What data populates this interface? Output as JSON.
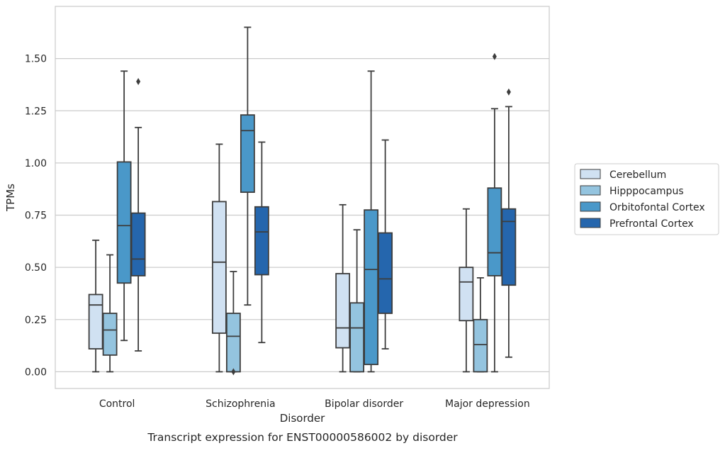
{
  "caption": "Transcript expression for ENST00000586002 by disorder",
  "chart_data": {
    "type": "box",
    "title": "",
    "xlabel": "Disorder",
    "ylabel": "TPMs",
    "ylim": [
      -0.08,
      1.75
    ],
    "yticks": [
      0.0,
      0.25,
      0.5,
      0.75,
      1.0,
      1.25,
      1.5
    ],
    "ytick_labels": [
      "0.00",
      "0.25",
      "0.50",
      "0.75",
      "1.00",
      "1.25",
      "1.50"
    ],
    "grid": "horizontal",
    "legend_position": "right",
    "categories": [
      "Control",
      "Schizophrenia",
      "Bipolar disorder",
      "Major depression"
    ],
    "series": [
      {
        "name": "Cerebellum",
        "color": "#d0e1f2",
        "boxes": [
          {
            "whislo": 0.0,
            "q1": 0.11,
            "med": 0.32,
            "q3": 0.37,
            "whishi": 0.63,
            "fliers": []
          },
          {
            "whislo": 0.0,
            "q1": 0.185,
            "med": 0.525,
            "q3": 0.815,
            "whishi": 1.09,
            "fliers": []
          },
          {
            "whislo": 0.0,
            "q1": 0.115,
            "med": 0.21,
            "q3": 0.47,
            "whishi": 0.8,
            "fliers": []
          },
          {
            "whislo": 0.0,
            "q1": 0.245,
            "med": 0.43,
            "q3": 0.5,
            "whishi": 0.78,
            "fliers": []
          }
        ]
      },
      {
        "name": "Hipppocampus",
        "color": "#94c4df",
        "boxes": [
          {
            "whislo": 0.0,
            "q1": 0.08,
            "med": 0.2,
            "q3": 0.28,
            "whishi": 0.56,
            "fliers": []
          },
          {
            "whislo": 0.0,
            "q1": 0.0,
            "med": 0.17,
            "q3": 0.28,
            "whishi": 0.48,
            "fliers": [
              0.0
            ]
          },
          {
            "whislo": 0.0,
            "q1": 0.0,
            "med": 0.21,
            "q3": 0.33,
            "whishi": 0.68,
            "fliers": []
          },
          {
            "whislo": 0.0,
            "q1": 0.0,
            "med": 0.13,
            "q3": 0.25,
            "whishi": 0.45,
            "fliers": []
          }
        ]
      },
      {
        "name": "Orbitofontal Cortex",
        "color": "#4a98c9",
        "boxes": [
          {
            "whislo": 0.15,
            "q1": 0.425,
            "med": 0.7,
            "q3": 1.005,
            "whishi": 1.44,
            "fliers": []
          },
          {
            "whislo": 0.32,
            "q1": 0.86,
            "med": 1.155,
            "q3": 1.23,
            "whishi": 1.65,
            "fliers": []
          },
          {
            "whislo": 0.0,
            "q1": 0.035,
            "med": 0.49,
            "q3": 0.775,
            "whishi": 1.44,
            "fliers": []
          },
          {
            "whislo": 0.0,
            "q1": 0.46,
            "med": 0.57,
            "q3": 0.88,
            "whishi": 1.26,
            "fliers": [
              1.51
            ]
          }
        ]
      },
      {
        "name": "Prefrontal Cortex",
        "color": "#2566ad",
        "boxes": [
          {
            "whislo": 0.1,
            "q1": 0.46,
            "med": 0.54,
            "q3": 0.76,
            "whishi": 1.17,
            "fliers": [
              1.39
            ]
          },
          {
            "whislo": 0.14,
            "q1": 0.465,
            "med": 0.67,
            "q3": 0.79,
            "whishi": 1.1,
            "fliers": []
          },
          {
            "whislo": 0.11,
            "q1": 0.28,
            "med": 0.445,
            "q3": 0.665,
            "whishi": 1.11,
            "fliers": []
          },
          {
            "whislo": 0.07,
            "q1": 0.415,
            "med": 0.72,
            "q3": 0.78,
            "whishi": 1.27,
            "fliers": [
              1.34
            ]
          }
        ]
      }
    ]
  }
}
